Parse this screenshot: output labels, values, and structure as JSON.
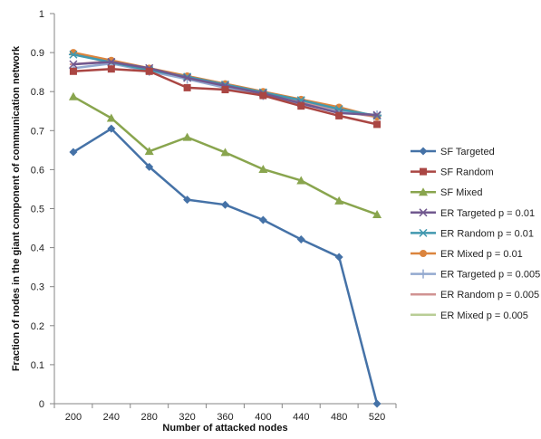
{
  "chart_data": {
    "type": "line",
    "xlabel": "Number of attacked nodes",
    "ylabel": "Fraction of nodes in the giant component of communication network",
    "categories": [
      "200",
      "240",
      "280",
      "320",
      "360",
      "400",
      "440",
      "480",
      "520"
    ],
    "ylim": [
      0,
      1
    ],
    "yticks": [
      "0",
      "0.1",
      "0.2",
      "0.3",
      "0.4",
      "0.5",
      "0.6",
      "0.7",
      "0.8",
      "0.9",
      "1"
    ],
    "grid": false,
    "legend_position": "right",
    "series": [
      {
        "name": "SF Targeted",
        "color": "#4572A7",
        "marker": "diamond",
        "values": [
          0.645,
          0.705,
          0.607,
          0.523,
          0.51,
          0.471,
          0.421,
          0.376,
          0.0
        ]
      },
      {
        "name": "SF Random",
        "color": "#AA4643",
        "marker": "square",
        "values": [
          0.852,
          0.858,
          0.852,
          0.81,
          0.805,
          0.79,
          0.763,
          0.738,
          0.716
        ]
      },
      {
        "name": "SF Mixed",
        "color": "#89A54E",
        "marker": "triangle",
        "values": [
          0.787,
          0.732,
          0.647,
          0.683,
          0.644,
          0.601,
          0.572,
          0.52,
          0.485
        ]
      },
      {
        "name": "ER Targeted p = 0.01",
        "color": "#71588F",
        "marker": "x",
        "values": [
          0.87,
          0.876,
          0.86,
          0.835,
          0.815,
          0.795,
          0.77,
          0.745,
          0.74
        ]
      },
      {
        "name": "ER Random p = 0.01",
        "color": "#4198AF",
        "marker": "star",
        "values": [
          0.895,
          0.875,
          0.855,
          0.838,
          0.818,
          0.798,
          0.778,
          0.755,
          0.738
        ]
      },
      {
        "name": "ER Mixed p = 0.01",
        "color": "#DB843D",
        "marker": "circle",
        "values": [
          0.9,
          0.88,
          0.86,
          0.84,
          0.82,
          0.8,
          0.78,
          0.76,
          0.735
        ]
      },
      {
        "name": "ER Targeted p = 0.005",
        "color": "#93A9CF",
        "marker": "plus",
        "values": [
          0.86,
          0.872,
          0.852,
          0.832,
          0.81,
          0.79,
          0.768,
          0.748,
          0.74
        ]
      },
      {
        "name": "ER Random p = 0.005",
        "color": "#D19392",
        "marker": "dash",
        "values": [
          0.87,
          0.878,
          0.86,
          0.838,
          0.82,
          0.795,
          0.772,
          0.75,
          0.735
        ]
      },
      {
        "name": "ER Mixed p = 0.005",
        "color": "#B9CD96",
        "marker": "dash",
        "values": [
          0.895,
          0.878,
          0.858,
          0.84,
          0.818,
          0.8,
          0.776,
          0.756,
          0.735
        ]
      }
    ]
  }
}
